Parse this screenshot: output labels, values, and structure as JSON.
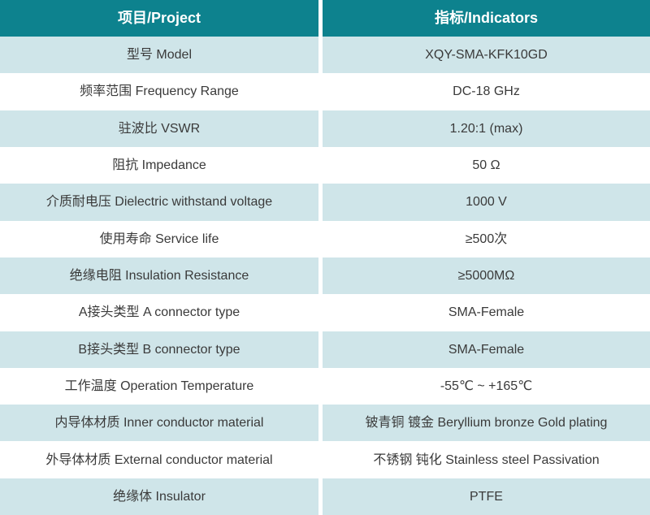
{
  "table": {
    "header": {
      "project_label": "项目/Project",
      "indicators_label": "指标/Indicators"
    },
    "rows": [
      {
        "project": "型号 Model",
        "indicator": "XQY-SMA-KFK10GD"
      },
      {
        "project": "频率范围 Frequency Range",
        "indicator": "DC-18 GHz"
      },
      {
        "project": "驻波比 VSWR",
        "indicator": "1.20:1 (max)"
      },
      {
        "project": "阻抗 Impedance",
        "indicator": "50 Ω"
      },
      {
        "project": "介质耐电压 Dielectric withstand voltage",
        "indicator": "1000 V"
      },
      {
        "project": "使用寿命 Service life",
        "indicator": "≥500次"
      },
      {
        "project": "绝缘电阻 Insulation Resistance",
        "indicator": "≥5000MΩ"
      },
      {
        "project": "A接头类型 A connector type",
        "indicator": "SMA-Female"
      },
      {
        "project": "B接头类型 B connector type",
        "indicator": "SMA-Female"
      },
      {
        "project": "工作温度 Operation Temperature",
        "indicator": "-55℃ ~ +165℃"
      },
      {
        "project": "内导体材质 Inner conductor material",
        "indicator": "铍青铜 镀金 Beryllium bronze Gold plating"
      },
      {
        "project": "外导体材质 External conductor material",
        "indicator": "不锈钢 钝化 Stainless steel Passivation"
      },
      {
        "project": "绝缘体 Insulator",
        "indicator": "PTFE"
      }
    ]
  },
  "colors": {
    "header_bg": "#0d828e",
    "header_text": "#ffffff",
    "row_bg": "#ffffff",
    "row_alt_bg": "#cfe5e9",
    "text": "#3a3a3a"
  }
}
